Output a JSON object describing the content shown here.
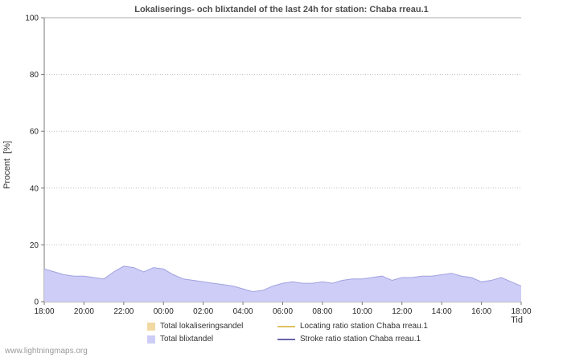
{
  "page": {
    "watermark": "www.lightningmaps.org"
  },
  "chart_data": {
    "type": "area",
    "title": "Lokaliserings- och blixtandel of the last 24h for station: Chaba rreau.1",
    "ylabel": "Procent  [%]",
    "xlabel": "Tid",
    "ylim": [
      0,
      100
    ],
    "yticks": [
      0,
      20,
      40,
      60,
      80,
      100
    ],
    "xtick_labels": [
      "18:00",
      "20:00",
      "22:00",
      "00:00",
      "02:00",
      "04:00",
      "06:00",
      "08:00",
      "10:00",
      "12:00",
      "14:00",
      "16:00",
      "18:00"
    ],
    "x_interval_minutes": 30,
    "grid": "horizontal-dotted",
    "legend_position": "bottom",
    "series": [
      {
        "name": "Total blixtandel",
        "type": "area",
        "fill": "#cdcdf7",
        "stroke": "#a2a2e0",
        "values": [
          11.5,
          10.5,
          9.5,
          9,
          9,
          8.5,
          8,
          10.5,
          12.5,
          12,
          10.5,
          12,
          11.5,
          9.5,
          8,
          7.5,
          7,
          6.5,
          6,
          5.5,
          4.5,
          3.5,
          4,
          5.5,
          6.5,
          7,
          6.5,
          6.5,
          7,
          6.5,
          7.5,
          8,
          8,
          8.5,
          9,
          7.5,
          8.5,
          8.5,
          9,
          9,
          9.5,
          10,
          9,
          8.5,
          7,
          7.5,
          8.5,
          7,
          5.5
        ]
      }
    ],
    "legend": [
      {
        "label": "Total lokaliseringsandel",
        "marker": "swatch",
        "color": "#f2d9a2"
      },
      {
        "label": "Locating ratio station Chaba rreau.1",
        "marker": "line",
        "color": "#dfc263"
      },
      {
        "label": "Total blixtandel",
        "marker": "swatch",
        "color": "#cdcdf7"
      },
      {
        "label": "Stroke ratio station Chaba rreau.1",
        "marker": "line",
        "color": "#6666aa"
      }
    ]
  }
}
